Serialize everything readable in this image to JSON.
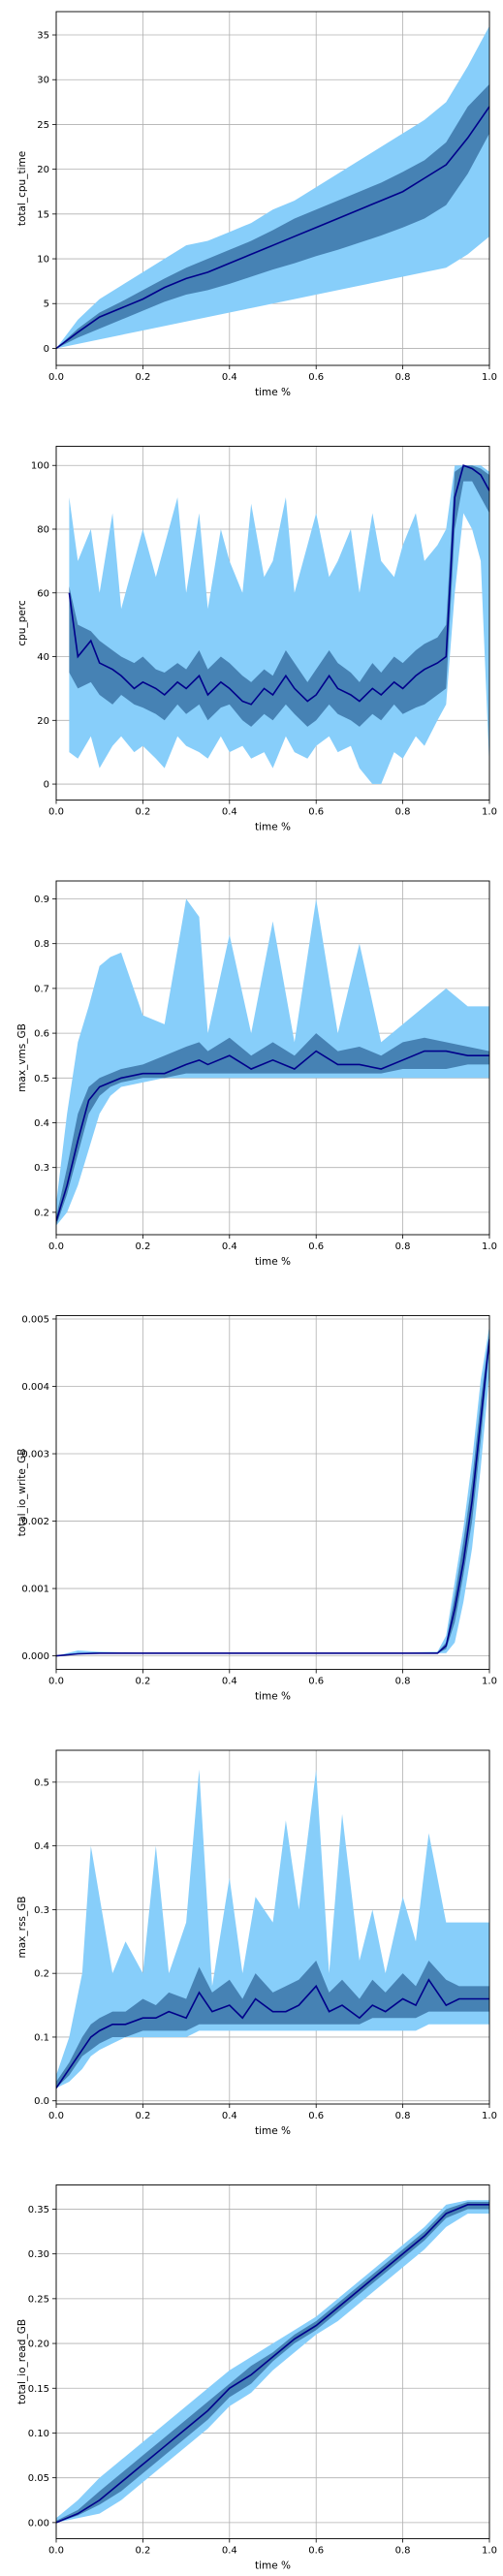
{
  "colors": {
    "outer_band": "#87cefa",
    "inner_band": "#4682b4",
    "median_line": "#00008b",
    "grid": "#b0b0b0"
  },
  "chart_data": [
    {
      "type": "area",
      "xlabel": "time %",
      "ylabel": "total_cpu_time",
      "xlim": [
        0,
        1
      ],
      "ylim": [
        -1.9,
        37.6
      ],
      "xticks": [
        0.0,
        0.2,
        0.4,
        0.6,
        0.8,
        1.0
      ],
      "yticks": [
        0,
        5,
        10,
        15,
        20,
        25,
        30,
        35
      ],
      "ytick_decimals": 0,
      "grid": true,
      "x": [
        0,
        0.05,
        0.1,
        0.15,
        0.2,
        0.25,
        0.3,
        0.35,
        0.4,
        0.45,
        0.5,
        0.55,
        0.6,
        0.65,
        0.7,
        0.75,
        0.8,
        0.85,
        0.9,
        0.95,
        1.0
      ],
      "min": [
        0,
        0.5,
        1.0,
        1.5,
        2.0,
        2.5,
        3.0,
        3.5,
        4.0,
        4.5,
        5.0,
        5.5,
        6.0,
        6.5,
        7.0,
        7.5,
        8.0,
        8.5,
        9.0,
        10.5,
        12.5
      ],
      "q1": [
        0,
        1.2,
        2.2,
        3.2,
        4.2,
        5.2,
        6.0,
        6.5,
        7.2,
        8.0,
        8.8,
        9.5,
        10.3,
        11.0,
        11.8,
        12.6,
        13.5,
        14.5,
        16.0,
        19.5,
        24.0
      ],
      "median": [
        0,
        1.8,
        3.5,
        4.5,
        5.5,
        6.8,
        7.8,
        8.5,
        9.5,
        10.5,
        11.5,
        12.5,
        13.5,
        14.5,
        15.5,
        16.5,
        17.5,
        19.0,
        20.5,
        23.5,
        27.0
      ],
      "q3": [
        0,
        2.2,
        4.0,
        5.2,
        6.5,
        7.8,
        9.0,
        10.0,
        11.0,
        12.0,
        13.2,
        14.5,
        15.5,
        16.5,
        17.5,
        18.5,
        19.7,
        21.0,
        23.0,
        27.0,
        29.5
      ],
      "max": [
        0,
        3.2,
        5.5,
        7.0,
        8.5,
        10.0,
        11.5,
        12.0,
        13.0,
        14.0,
        15.5,
        16.5,
        18.0,
        19.5,
        21.0,
        22.5,
        24.0,
        25.5,
        27.5,
        31.5,
        36.0
      ]
    },
    {
      "type": "area",
      "xlabel": "time %",
      "ylabel": "cpu_perc",
      "xlim": [
        0,
        1
      ],
      "ylim": [
        -5,
        106
      ],
      "xticks": [
        0.0,
        0.2,
        0.4,
        0.6,
        0.8,
        1.0
      ],
      "yticks": [
        0,
        20,
        40,
        60,
        80,
        100
      ],
      "ytick_decimals": 0,
      "grid": true,
      "x": [
        0.03,
        0.05,
        0.08,
        0.1,
        0.13,
        0.15,
        0.18,
        0.2,
        0.23,
        0.25,
        0.28,
        0.3,
        0.33,
        0.35,
        0.38,
        0.4,
        0.43,
        0.45,
        0.48,
        0.5,
        0.53,
        0.55,
        0.58,
        0.6,
        0.63,
        0.65,
        0.68,
        0.7,
        0.73,
        0.75,
        0.78,
        0.8,
        0.83,
        0.85,
        0.88,
        0.9,
        0.92,
        0.94,
        0.96,
        0.98,
        1.0
      ],
      "min": [
        10,
        8,
        15,
        5,
        12,
        15,
        10,
        12,
        8,
        5,
        15,
        12,
        10,
        8,
        15,
        10,
        12,
        8,
        10,
        5,
        15,
        10,
        8,
        12,
        15,
        10,
        12,
        5,
        0,
        0,
        10,
        8,
        15,
        12,
        20,
        25,
        60,
        85,
        80,
        70,
        5
      ],
      "q1": [
        35,
        30,
        32,
        28,
        25,
        28,
        25,
        24,
        22,
        20,
        25,
        22,
        25,
        20,
        24,
        25,
        20,
        18,
        22,
        20,
        25,
        22,
        18,
        20,
        25,
        22,
        20,
        18,
        22,
        20,
        25,
        22,
        24,
        25,
        28,
        30,
        80,
        95,
        95,
        90,
        85
      ],
      "median": [
        60,
        40,
        45,
        38,
        36,
        34,
        30,
        32,
        30,
        28,
        32,
        30,
        34,
        28,
        32,
        30,
        26,
        25,
        30,
        28,
        34,
        30,
        26,
        28,
        34,
        30,
        28,
        26,
        30,
        28,
        32,
        30,
        34,
        36,
        38,
        40,
        90,
        100,
        99,
        97,
        92
      ],
      "q3": [
        62,
        50,
        48,
        45,
        42,
        40,
        38,
        40,
        36,
        35,
        38,
        36,
        42,
        36,
        40,
        38,
        34,
        32,
        36,
        34,
        42,
        38,
        32,
        36,
        42,
        38,
        35,
        32,
        38,
        35,
        40,
        38,
        42,
        44,
        46,
        50,
        98,
        100,
        100,
        99,
        97
      ],
      "max": [
        90,
        70,
        80,
        60,
        85,
        55,
        70,
        80,
        65,
        75,
        90,
        60,
        85,
        55,
        80,
        70,
        60,
        88,
        65,
        70,
        90,
        60,
        75,
        85,
        65,
        70,
        80,
        60,
        85,
        70,
        65,
        75,
        85,
        70,
        75,
        80,
        100,
        100,
        100,
        100,
        98
      ]
    },
    {
      "type": "area",
      "xlabel": "time %",
      "ylabel": "max_vms_GB",
      "xlim": [
        0,
        1
      ],
      "ylim": [
        0.15,
        0.94
      ],
      "xticks": [
        0.0,
        0.2,
        0.4,
        0.6,
        0.8,
        1.0
      ],
      "yticks": [
        0.2,
        0.3,
        0.4,
        0.5,
        0.6,
        0.7,
        0.8,
        0.9
      ],
      "ytick_decimals": 1,
      "grid": true,
      "x": [
        0,
        0.025,
        0.05,
        0.075,
        0.1,
        0.125,
        0.15,
        0.2,
        0.25,
        0.3,
        0.33,
        0.35,
        0.4,
        0.45,
        0.5,
        0.55,
        0.6,
        0.65,
        0.7,
        0.75,
        0.8,
        0.85,
        0.9,
        0.95,
        1.0
      ],
      "min": [
        0.17,
        0.2,
        0.26,
        0.34,
        0.42,
        0.46,
        0.48,
        0.49,
        0.5,
        0.5,
        0.5,
        0.5,
        0.5,
        0.5,
        0.5,
        0.5,
        0.5,
        0.5,
        0.5,
        0.5,
        0.5,
        0.5,
        0.5,
        0.5,
        0.5
      ],
      "q1": [
        0.17,
        0.24,
        0.33,
        0.42,
        0.46,
        0.48,
        0.49,
        0.5,
        0.5,
        0.51,
        0.51,
        0.51,
        0.51,
        0.51,
        0.51,
        0.51,
        0.51,
        0.51,
        0.51,
        0.51,
        0.52,
        0.52,
        0.52,
        0.53,
        0.53
      ],
      "median": [
        0.18,
        0.26,
        0.36,
        0.45,
        0.48,
        0.49,
        0.5,
        0.51,
        0.51,
        0.53,
        0.54,
        0.53,
        0.55,
        0.52,
        0.54,
        0.52,
        0.56,
        0.53,
        0.53,
        0.52,
        0.54,
        0.56,
        0.56,
        0.55,
        0.55
      ],
      "q3": [
        0.19,
        0.3,
        0.42,
        0.48,
        0.5,
        0.51,
        0.52,
        0.53,
        0.55,
        0.57,
        0.58,
        0.56,
        0.59,
        0.55,
        0.58,
        0.55,
        0.6,
        0.56,
        0.57,
        0.55,
        0.58,
        0.59,
        0.58,
        0.57,
        0.56
      ],
      "max": [
        0.22,
        0.42,
        0.58,
        0.66,
        0.75,
        0.77,
        0.78,
        0.64,
        0.62,
        0.9,
        0.86,
        0.6,
        0.82,
        0.6,
        0.85,
        0.58,
        0.9,
        0.6,
        0.8,
        0.58,
        0.62,
        0.66,
        0.7,
        0.66,
        0.66
      ]
    },
    {
      "type": "area",
      "xlabel": "time %",
      "ylabel": "total_io_write_GB",
      "xlim": [
        0,
        1
      ],
      "ylim": [
        -0.0002,
        0.00505
      ],
      "xticks": [
        0.0,
        0.2,
        0.4,
        0.6,
        0.8,
        1.0
      ],
      "yticks": [
        0.0,
        0.001,
        0.002,
        0.003,
        0.004,
        0.005
      ],
      "ytick_decimals": 3,
      "grid": true,
      "x": [
        0,
        0.05,
        0.1,
        0.2,
        0.4,
        0.6,
        0.8,
        0.88,
        0.9,
        0.92,
        0.94,
        0.96,
        0.98,
        1.0
      ],
      "min": [
        0,
        2e-05,
        4e-05,
        4e-05,
        4e-05,
        4e-05,
        4e-05,
        4e-05,
        4e-05,
        0.0002,
        0.0008,
        0.0016,
        0.0028,
        0.0042
      ],
      "q1": [
        0,
        3e-05,
        4e-05,
        4e-05,
        4e-05,
        4e-05,
        4e-05,
        4e-05,
        0.0001,
        0.0005,
        0.0012,
        0.002,
        0.0032,
        0.0046
      ],
      "median": [
        0,
        3e-05,
        4e-05,
        4e-05,
        4e-05,
        4e-05,
        4e-05,
        4e-05,
        0.00015,
        0.0007,
        0.0014,
        0.0023,
        0.0035,
        0.0047
      ],
      "q3": [
        0,
        4e-05,
        5e-05,
        5e-05,
        5e-05,
        5e-05,
        5e-05,
        5e-05,
        0.0002,
        0.0009,
        0.0017,
        0.0026,
        0.0038,
        0.0048
      ],
      "max": [
        0,
        8e-05,
        6e-05,
        5e-05,
        5e-05,
        5e-05,
        5e-05,
        6e-05,
        0.0003,
        0.0011,
        0.0019,
        0.0029,
        0.0041,
        0.0049
      ]
    },
    {
      "type": "area",
      "xlabel": "time %",
      "ylabel": "max_rss_GB",
      "xlim": [
        0,
        1
      ],
      "ylim": [
        -0.005,
        0.55
      ],
      "xticks": [
        0.0,
        0.2,
        0.4,
        0.6,
        0.8,
        1.0
      ],
      "yticks": [
        0.0,
        0.1,
        0.2,
        0.3,
        0.4,
        0.5
      ],
      "ytick_decimals": 1,
      "grid": true,
      "x": [
        0,
        0.03,
        0.06,
        0.08,
        0.1,
        0.13,
        0.16,
        0.2,
        0.23,
        0.26,
        0.3,
        0.33,
        0.36,
        0.4,
        0.43,
        0.46,
        0.5,
        0.53,
        0.56,
        0.6,
        0.63,
        0.66,
        0.7,
        0.73,
        0.76,
        0.8,
        0.83,
        0.86,
        0.9,
        0.93,
        0.96,
        1.0
      ],
      "min": [
        0.02,
        0.03,
        0.05,
        0.07,
        0.08,
        0.09,
        0.1,
        0.1,
        0.1,
        0.1,
        0.1,
        0.11,
        0.11,
        0.11,
        0.11,
        0.11,
        0.11,
        0.11,
        0.11,
        0.11,
        0.11,
        0.11,
        0.11,
        0.11,
        0.11,
        0.11,
        0.11,
        0.12,
        0.12,
        0.12,
        0.12,
        0.12
      ],
      "q1": [
        0.02,
        0.04,
        0.07,
        0.08,
        0.09,
        0.1,
        0.1,
        0.11,
        0.11,
        0.11,
        0.11,
        0.12,
        0.12,
        0.12,
        0.12,
        0.12,
        0.12,
        0.12,
        0.12,
        0.12,
        0.12,
        0.12,
        0.12,
        0.13,
        0.13,
        0.13,
        0.13,
        0.14,
        0.14,
        0.14,
        0.14,
        0.14
      ],
      "median": [
        0.02,
        0.05,
        0.08,
        0.1,
        0.11,
        0.12,
        0.12,
        0.13,
        0.13,
        0.14,
        0.13,
        0.17,
        0.14,
        0.15,
        0.13,
        0.16,
        0.14,
        0.14,
        0.15,
        0.18,
        0.14,
        0.15,
        0.13,
        0.15,
        0.14,
        0.16,
        0.15,
        0.19,
        0.15,
        0.16,
        0.16,
        0.16
      ],
      "q3": [
        0.03,
        0.06,
        0.1,
        0.12,
        0.13,
        0.14,
        0.14,
        0.16,
        0.15,
        0.17,
        0.16,
        0.21,
        0.17,
        0.19,
        0.16,
        0.2,
        0.17,
        0.18,
        0.19,
        0.22,
        0.17,
        0.19,
        0.16,
        0.19,
        0.17,
        0.2,
        0.18,
        0.22,
        0.19,
        0.18,
        0.18,
        0.18
      ],
      "max": [
        0.04,
        0.1,
        0.2,
        0.4,
        0.32,
        0.2,
        0.25,
        0.2,
        0.4,
        0.2,
        0.28,
        0.52,
        0.18,
        0.35,
        0.2,
        0.32,
        0.28,
        0.44,
        0.3,
        0.52,
        0.2,
        0.45,
        0.22,
        0.3,
        0.2,
        0.32,
        0.25,
        0.42,
        0.28,
        0.28,
        0.28,
        0.28
      ]
    },
    {
      "type": "area",
      "xlabel": "time %",
      "ylabel": "total_io_read_GB",
      "xlim": [
        0,
        1
      ],
      "ylim": [
        -0.018,
        0.377
      ],
      "xticks": [
        0.0,
        0.2,
        0.4,
        0.6,
        0.8,
        1.0
      ],
      "yticks": [
        0.0,
        0.05,
        0.1,
        0.15,
        0.2,
        0.25,
        0.3,
        0.35
      ],
      "ytick_decimals": 2,
      "grid": true,
      "x": [
        0,
        0.05,
        0.1,
        0.15,
        0.2,
        0.25,
        0.3,
        0.35,
        0.4,
        0.45,
        0.5,
        0.55,
        0.6,
        0.65,
        0.7,
        0.75,
        0.8,
        0.85,
        0.9,
        0.95,
        1.0
      ],
      "min": [
        0,
        0.005,
        0.01,
        0.025,
        0.045,
        0.065,
        0.085,
        0.105,
        0.13,
        0.145,
        0.17,
        0.19,
        0.21,
        0.225,
        0.245,
        0.265,
        0.285,
        0.305,
        0.33,
        0.345,
        0.345
      ],
      "q1": [
        0,
        0.008,
        0.02,
        0.035,
        0.055,
        0.075,
        0.095,
        0.115,
        0.14,
        0.155,
        0.18,
        0.2,
        0.215,
        0.235,
        0.255,
        0.275,
        0.295,
        0.315,
        0.34,
        0.35,
        0.35
      ],
      "median": [
        0,
        0.01,
        0.025,
        0.045,
        0.065,
        0.085,
        0.105,
        0.125,
        0.15,
        0.165,
        0.185,
        0.205,
        0.22,
        0.24,
        0.26,
        0.28,
        0.3,
        0.32,
        0.345,
        0.355,
        0.355
      ],
      "q3": [
        0.002,
        0.014,
        0.035,
        0.055,
        0.075,
        0.095,
        0.115,
        0.135,
        0.155,
        0.175,
        0.19,
        0.21,
        0.225,
        0.245,
        0.265,
        0.285,
        0.305,
        0.325,
        0.35,
        0.358,
        0.358
      ],
      "max": [
        0.005,
        0.025,
        0.05,
        0.07,
        0.09,
        0.11,
        0.13,
        0.15,
        0.17,
        0.185,
        0.2,
        0.215,
        0.23,
        0.25,
        0.27,
        0.29,
        0.31,
        0.33,
        0.355,
        0.36,
        0.36
      ]
    }
  ]
}
